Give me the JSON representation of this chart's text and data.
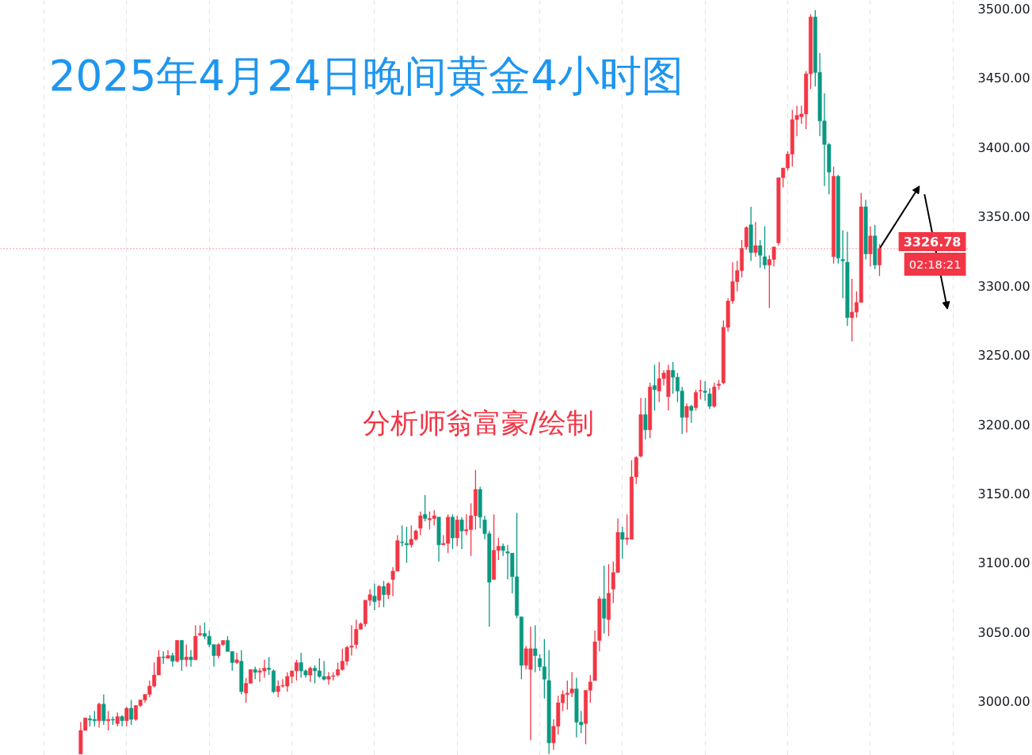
{
  "chart_data": {
    "type": "candlestick",
    "title": "2025年4月24日晚间黄金4小时图",
    "annotations": [
      "分析师翁富豪/绘制",
      "02:18:21"
    ],
    "categories": [
      null,
      null,
      null,
      null,
      null,
      null,
      null,
      null,
      null,
      null,
      null,
      null,
      null,
      null,
      null,
      null,
      null,
      null,
      null,
      null,
      null,
      null,
      null,
      null,
      null,
      null,
      null,
      null,
      null,
      null,
      null,
      null,
      null,
      null,
      null,
      null,
      null,
      null,
      null,
      null,
      null,
      null,
      null,
      null,
      null,
      null,
      null,
      null,
      null,
      null,
      null,
      null,
      null,
      null,
      null,
      null,
      null,
      null,
      null,
      null,
      null,
      null,
      null,
      null,
      null,
      null,
      null,
      null,
      null,
      null,
      null,
      null,
      null,
      null,
      null,
      null,
      null,
      null,
      null,
      null,
      null,
      null,
      null,
      null,
      null,
      null,
      null,
      null,
      null,
      null,
      null,
      null,
      null,
      null,
      null,
      null,
      null,
      null,
      null,
      null,
      null,
      null,
      null,
      null,
      null,
      null,
      null,
      null,
      null,
      null,
      null,
      null,
      null,
      null,
      null,
      null,
      null,
      null,
      null,
      null,
      null,
      null,
      null,
      null,
      null,
      null,
      null,
      null,
      null,
      null,
      null,
      null,
      null,
      null,
      null,
      null,
      null,
      null,
      null,
      null,
      null,
      null,
      null,
      null,
      null,
      null,
      null,
      null,
      null,
      null,
      null,
      null,
      null,
      null,
      null,
      null,
      null,
      null,
      null,
      null,
      null,
      null,
      null,
      null,
      null,
      null,
      null,
      null,
      null,
      null,
      null,
      null,
      null,
      null,
      null,
      null,
      null,
      null,
      null,
      null,
      null,
      null,
      null,
      null,
      null,
      null,
      null,
      null,
      null,
      null,
      null,
      null,
      null,
      null,
      null,
      null,
      null,
      null,
      null,
      null,
      null,
      null,
      null,
      null,
      null,
      null,
      null,
      null,
      null,
      null,
      null
    ],
    "ohlc": [
      null,
      null,
      null,
      null,
      null,
      null,
      null,
      null,
      null,
      null,
      null,
      null,
      null,
      null,
      null,
      null,
      null,
      [
        2962,
        2985,
        2962,
        2979
      ],
      [
        2979,
        2988,
        2979,
        2988
      ],
      [
        2987.5,
        2990,
        2982,
        2986.5
      ],
      [
        2987,
        2993,
        2982,
        2986
      ],
      [
        2986,
        2999,
        2981,
        2998
      ],
      [
        2998,
        3005,
        2983,
        2986
      ],
      [
        2986,
        2993,
        2979,
        2987
      ],
      [
        2987,
        2989,
        2983,
        2986.5
      ],
      [
        2984,
        2992,
        2982,
        2989
      ],
      [
        2989,
        2990,
        2982,
        2986
      ],
      [
        2986,
        2996,
        2982,
        2995
      ],
      [
        2995,
        3001,
        2983,
        2987
      ],
      [
        2987,
        2997,
        2986,
        2997
      ],
      [
        2997,
        3001,
        2996,
        3001
      ],
      [
        3001,
        3005,
        2999,
        3005
      ],
      [
        3005,
        3015,
        3003,
        3011
      ],
      [
        3011,
        3028,
        3010,
        3019
      ],
      [
        3019,
        3037,
        3019,
        3032
      ],
      [
        3032,
        3036,
        3027,
        3031.5
      ],
      [
        3031,
        3037,
        3031,
        3033
      ],
      [
        3033,
        3035,
        3025,
        3029
      ],
      [
        3029,
        3044,
        3028,
        3044
      ],
      [
        3044,
        3044,
        3022,
        3030
      ],
      [
        3030,
        3041,
        3025,
        3032
      ],
      [
        3032,
        3037,
        3025,
        3030
      ],
      [
        3030,
        3055,
        3030,
        3047
      ],
      [
        3048,
        3055,
        3047,
        3049
      ],
      [
        3049,
        3057,
        3045,
        3047
      ],
      [
        3047,
        3051,
        3039,
        3041
      ],
      [
        3041,
        3041,
        3025,
        3033
      ],
      [
        3033,
        3042,
        3031,
        3041
      ],
      [
        3041,
        3044,
        3040,
        3044
      ],
      [
        3044,
        3047,
        3036,
        3036
      ],
      [
        3036,
        3036,
        3022,
        3028
      ],
      [
        3028,
        3035,
        3027,
        3030
      ],
      [
        3029,
        3037,
        3005,
        3007
      ],
      [
        3006,
        3017,
        2999,
        3013
      ],
      [
        3013,
        3023,
        3013,
        3023
      ],
      [
        3023,
        3025,
        3016,
        3021
      ],
      [
        3021,
        3024,
        3014,
        3022
      ],
      [
        3022,
        3030,
        3017,
        3024
      ],
      [
        3024,
        3032,
        3019,
        3023
      ],
      [
        3022,
        3023,
        3006,
        3007
      ],
      [
        3007,
        3015,
        3003,
        3011
      ],
      [
        3011,
        3016,
        3010,
        3011.5
      ],
      [
        3011,
        3021,
        3007,
        3018
      ],
      [
        3018,
        3022,
        3013,
        3022
      ],
      [
        3022,
        3030,
        3015,
        3028
      ],
      [
        3028,
        3035,
        3017,
        3022
      ],
      [
        3022,
        3023,
        3017,
        3019
      ],
      [
        3019,
        3025,
        3014,
        3024
      ],
      [
        3024,
        3026,
        3013,
        3022
      ],
      [
        3022,
        3031,
        3017,
        3018
      ],
      [
        3018,
        3029,
        3015,
        3016
      ],
      [
        3016,
        3021,
        3012,
        3018
      ],
      [
        3018,
        3021,
        3015,
        3018.5
      ],
      [
        3019,
        3028,
        3018,
        3023
      ],
      [
        3023,
        3038,
        3022,
        3029
      ],
      [
        3029,
        3040,
        3026,
        3039
      ],
      [
        3039,
        3055,
        3033,
        3040
      ],
      [
        3041,
        3059,
        3038,
        3052
      ],
      [
        3052,
        3057,
        3052,
        3056
      ],
      [
        3056,
        3073,
        3054,
        3073
      ],
      [
        3073,
        3081,
        3069,
        3077
      ],
      [
        3076,
        3085,
        3066,
        3072
      ],
      [
        3073,
        3084,
        3068,
        3083
      ],
      [
        3083,
        3087,
        3068,
        3077
      ],
      [
        3077,
        3086,
        3074,
        3085
      ],
      [
        3088,
        3097,
        3076,
        3094
      ],
      [
        3094,
        3120,
        3094,
        3116
      ],
      [
        3115,
        3127,
        3112,
        3114.5
      ],
      [
        3114,
        3126,
        3100,
        3113
      ],
      [
        3113,
        3127,
        3111,
        3117
      ],
      [
        3117,
        3124,
        3116,
        3123
      ],
      [
        3125,
        3137,
        3120,
        3134
      ],
      [
        3135,
        3149,
        3130,
        3132
      ],
      [
        3131,
        3137,
        3124,
        3132
      ],
      [
        3132,
        3138,
        3127,
        3134
      ],
      [
        3133,
        3133,
        3101,
        3113
      ],
      [
        3113,
        3120,
        3113,
        3114
      ],
      [
        3114,
        3135,
        3107,
        3133
      ],
      [
        3133,
        3135,
        3110,
        3118
      ],
      [
        3118,
        3134,
        3112,
        3131
      ],
      [
        3131,
        3133,
        3110,
        3123
      ],
      [
        3123,
        3135,
        3120,
        3124
      ],
      [
        3124,
        3143,
        3105,
        3134
      ],
      [
        3134,
        3167,
        3124,
        3153
      ],
      [
        3153,
        3155,
        3125,
        3133
      ],
      [
        3131,
        3134,
        3117,
        3121
      ],
      [
        3121,
        3123,
        3054,
        3086
      ],
      [
        3088,
        3135,
        3088,
        3109
      ],
      [
        3109,
        3118,
        3102,
        3112
      ],
      [
        3112,
        3114,
        3105,
        3109
      ],
      [
        3108,
        3113,
        3088,
        3107
      ],
      [
        3107,
        3107,
        3078,
        3090
      ],
      [
        3090,
        3136,
        3060,
        3062
      ],
      [
        3061,
        3061,
        3016,
        3026
      ],
      [
        3026,
        3040,
        3023,
        3038
      ],
      [
        3023,
        3054,
        2972,
        3038
      ],
      [
        3038,
        3055,
        3021,
        3033
      ],
      [
        3031,
        3034,
        3022,
        3025
      ],
      [
        3025,
        3045,
        3002,
        3016
      ],
      [
        3015,
        3037,
        2962,
        2970
      ],
      [
        2970,
        2987,
        2965,
        2982
      ],
      [
        2982,
        3004,
        2976,
        2999
      ],
      [
        2999,
        3008,
        2993,
        3005
      ],
      [
        3005,
        3015,
        2994,
        3006
      ],
      [
        3006,
        3021,
        3003,
        3009
      ],
      [
        3009,
        3017,
        2974,
        2985
      ],
      [
        2985,
        2993,
        2977,
        2983
      ],
      [
        2984,
        3008,
        2969,
        3008
      ],
      [
        3008,
        3019,
        2999,
        3014
      ],
      [
        3015,
        3051,
        3015,
        3043
      ],
      [
        3044,
        3076,
        3036,
        3074
      ],
      [
        3074,
        3098,
        3049,
        3060
      ],
      [
        3059,
        3099,
        3047,
        3078
      ],
      [
        3081,
        3101,
        3071,
        3093
      ],
      [
        3093,
        3132,
        3093,
        3122
      ],
      [
        3122,
        3126,
        3103,
        3117
      ],
      [
        3117,
        3135,
        3113,
        3118
      ],
      [
        3117,
        3174,
        3117,
        3162
      ],
      [
        3162,
        3177,
        3157,
        3176
      ],
      [
        3177,
        3219,
        3176,
        3207
      ],
      [
        3207,
        3219,
        3189,
        3196
      ],
      [
        3196,
        3230,
        3190,
        3227
      ],
      [
        3228,
        3243,
        3210,
        3225
      ],
      [
        3224,
        3245,
        3216,
        3233
      ],
      [
        3233,
        3239,
        3228,
        3237
      ],
      [
        3220,
        3243,
        3210,
        3239
      ],
      [
        3239,
        3245,
        3222,
        3234
      ],
      [
        3234,
        3237,
        3216,
        3224
      ],
      [
        3224,
        3227,
        3193,
        3205
      ],
      [
        3205,
        3215,
        3194,
        3213
      ],
      [
        3213,
        3214,
        3201,
        3210
      ],
      [
        3212,
        3225,
        3210,
        3223
      ],
      [
        3224,
        3232,
        3218,
        3224.5
      ],
      [
        3224,
        3231,
        3217,
        3223
      ],
      [
        3222,
        3226,
        3211,
        3213
      ],
      [
        3213,
        3230,
        3212,
        3227
      ],
      [
        3228,
        3232,
        3225,
        3229
      ],
      [
        3230,
        3275,
        3229,
        3270
      ],
      [
        3270,
        3291,
        3267,
        3289
      ],
      [
        3289,
        3317,
        3287,
        3303
      ],
      [
        3303,
        3318,
        3296,
        3311
      ],
      [
        3311,
        3333,
        3306,
        3327
      ],
      [
        3328,
        3343,
        3326,
        3342
      ],
      [
        3344,
        3357,
        3318,
        3324
      ],
      [
        3324,
        3346,
        3321,
        3329
      ],
      [
        3329,
        3333,
        3313,
        3322
      ],
      [
        3321,
        3343,
        3312,
        3315
      ],
      [
        3315,
        3322,
        3284,
        3319
      ],
      [
        3319,
        3328,
        3314,
        3328
      ],
      [
        3331,
        3378,
        3329,
        3378
      ],
      [
        3378,
        3385,
        3371,
        3385
      ],
      [
        3385,
        3397,
        3383,
        3395
      ],
      [
        3395,
        3427,
        3386,
        3420
      ],
      [
        3420,
        3430,
        3408,
        3423
      ],
      [
        3422,
        3430,
        3417,
        3424
      ],
      [
        3424,
        3455,
        3413,
        3453
      ],
      [
        3453,
        3496,
        3442,
        3494
      ],
      [
        3494,
        3499,
        3444,
        3454
      ],
      [
        3454,
        3468,
        3408,
        3419
      ],
      [
        3419,
        3439,
        3372,
        3402
      ],
      [
        3402,
        3403,
        3366,
        3382
      ],
      [
        3321,
        3386,
        3316,
        3379
      ],
      [
        3379,
        3380,
        3316,
        3320
      ],
      [
        3319,
        3340,
        3291,
        3318
      ],
      [
        3317,
        3339,
        3271,
        3277
      ],
      [
        3277,
        3305,
        3260,
        3281
      ],
      [
        3281,
        3296,
        3277,
        3288
      ],
      [
        3288,
        3367,
        3288,
        3357
      ],
      [
        3357,
        3362,
        3319,
        3323
      ],
      [
        3323,
        3343,
        3314,
        3336
      ],
      [
        3336,
        3344,
        3312,
        3315
      ],
      [
        3315,
        3330,
        3307,
        3326.78
      ],
      null,
      null,
      null,
      null,
      null,
      null,
      null,
      null,
      null,
      null,
      null,
      null,
      null,
      null,
      null,
      null,
      null,
      null,
      null
    ],
    "colors": [
      null,
      null,
      null,
      null,
      null,
      null,
      null,
      null,
      null,
      null,
      null,
      null,
      null,
      null,
      null,
      null,
      null,
      "#f23645",
      "#f23645",
      "#089981",
      "#089981",
      "#f23645",
      "#089981",
      "#f23645",
      "#089981",
      "#f23645",
      "#089981",
      "#f23645",
      "#089981",
      "#f23645",
      "#f23645",
      "#f23645",
      "#f23645",
      "#f23645",
      "#f23645",
      "#089981",
      "#f23645",
      "#089981",
      "#f23645",
      "#089981",
      "#f23645",
      "#089981",
      "#f23645",
      "#f23645",
      "#089981",
      "#089981",
      "#089981",
      "#f23645",
      "#f23645",
      "#089981",
      "#089981",
      "#f23645",
      "#089981",
      "#f23645",
      "#f23645",
      "#089981",
      "#f23645",
      "#f23645",
      "#089981",
      "#089981",
      "#f23645",
      "#f23645",
      "#f23645",
      "#f23645",
      "#f23645",
      "#089981",
      "#089981",
      "#f23645",
      "#089981",
      "#089981",
      "#089981",
      "#f23645",
      "#f23645",
      "#f23645",
      "#f23645",
      "#f23645",
      "#f23645",
      "#f23645",
      "#f23645",
      "#f23645",
      "#f23645",
      "#089981",
      "#f23645",
      "#089981",
      "#f23645",
      "#f23645",
      "#f23645",
      "#089981",
      "#089981",
      "#f23645",
      "#f23645",
      "#f23645",
      "#089981",
      "#f23645",
      "#f23645",
      "#089981",
      "#f23645",
      "#f23645",
      "#089981",
      "#f23645",
      "#089981",
      "#f23645",
      "#f23645",
      "#f23645",
      "#089981",
      "#089981",
      "#089981",
      "#f23645",
      "#f23645",
      "#089981",
      "#089981",
      "#089981",
      "#089981",
      "#089981",
      "#f23645",
      "#f23645",
      "#089981",
      "#089981",
      "#089981",
      "#089981",
      "#f23645",
      "#f23645",
      "#f23645",
      "#f23645",
      "#f23645",
      "#089981",
      "#089981",
      "#f23645",
      "#f23645",
      "#f23645",
      "#f23645",
      "#089981",
      "#f23645",
      "#f23645",
      "#f23645",
      "#089981",
      "#f23645",
      "#f23645",
      "#f23645",
      "#f23645",
      "#089981",
      "#f23645",
      "#089981",
      "#f23645",
      "#f23645",
      "#f23645",
      "#089981",
      "#089981",
      "#089981",
      "#f23645",
      "#089981",
      "#f23645",
      "#f23645",
      "#089981",
      "#089981",
      "#f23645",
      "#f23645",
      "#f23645",
      "#f23645",
      "#f23645",
      "#f23645",
      "#f23645",
      "#f23645",
      "#089981",
      "#f23645",
      "#089981",
      "#089981",
      "#f23645",
      "#f23645",
      "#f23645",
      "#f23645",
      "#f23645",
      "#f23645",
      "#f23645",
      "#f23645",
      "#f23645",
      "#f23645",
      "#089981",
      "#089981",
      "#089981",
      "#089981",
      "#f23645",
      "#089981",
      "#089981",
      "#089981",
      "#f23645",
      "#f23645",
      "#f23645",
      "#089981",
      "#f23645",
      "#089981",
      "#f23645",
      null,
      null,
      null,
      null,
      null,
      null,
      null,
      null,
      null,
      null,
      null,
      null,
      null,
      null,
      null,
      null,
      null,
      null,
      null
    ],
    "ylim": [
      2961,
      3506
    ],
    "yticks": [
      {
        "value": 3000,
        "label": "3000.00"
      },
      {
        "value": 3050,
        "label": "3050.00"
      },
      {
        "value": 3100,
        "label": "3100.00"
      },
      {
        "value": 3150,
        "label": "3150.00"
      },
      {
        "value": 3200,
        "label": "3200.00"
      },
      {
        "value": 3250,
        "label": "3250.00"
      },
      {
        "value": 3300,
        "label": "3300.00"
      },
      {
        "value": 3350,
        "label": "3350.00"
      },
      {
        "value": 3400,
        "label": "3400.00"
      },
      {
        "value": 3450,
        "label": "3450.00"
      },
      {
        "value": 3500,
        "label": "3500.00"
      }
    ],
    "ref_lines": [
      {
        "axis": "y",
        "value": 3326.78,
        "label": "3326.78",
        "color": "#f23645",
        "line_style": "dotted"
      }
    ],
    "grid": "x",
    "tick_labels": "y"
  }
}
